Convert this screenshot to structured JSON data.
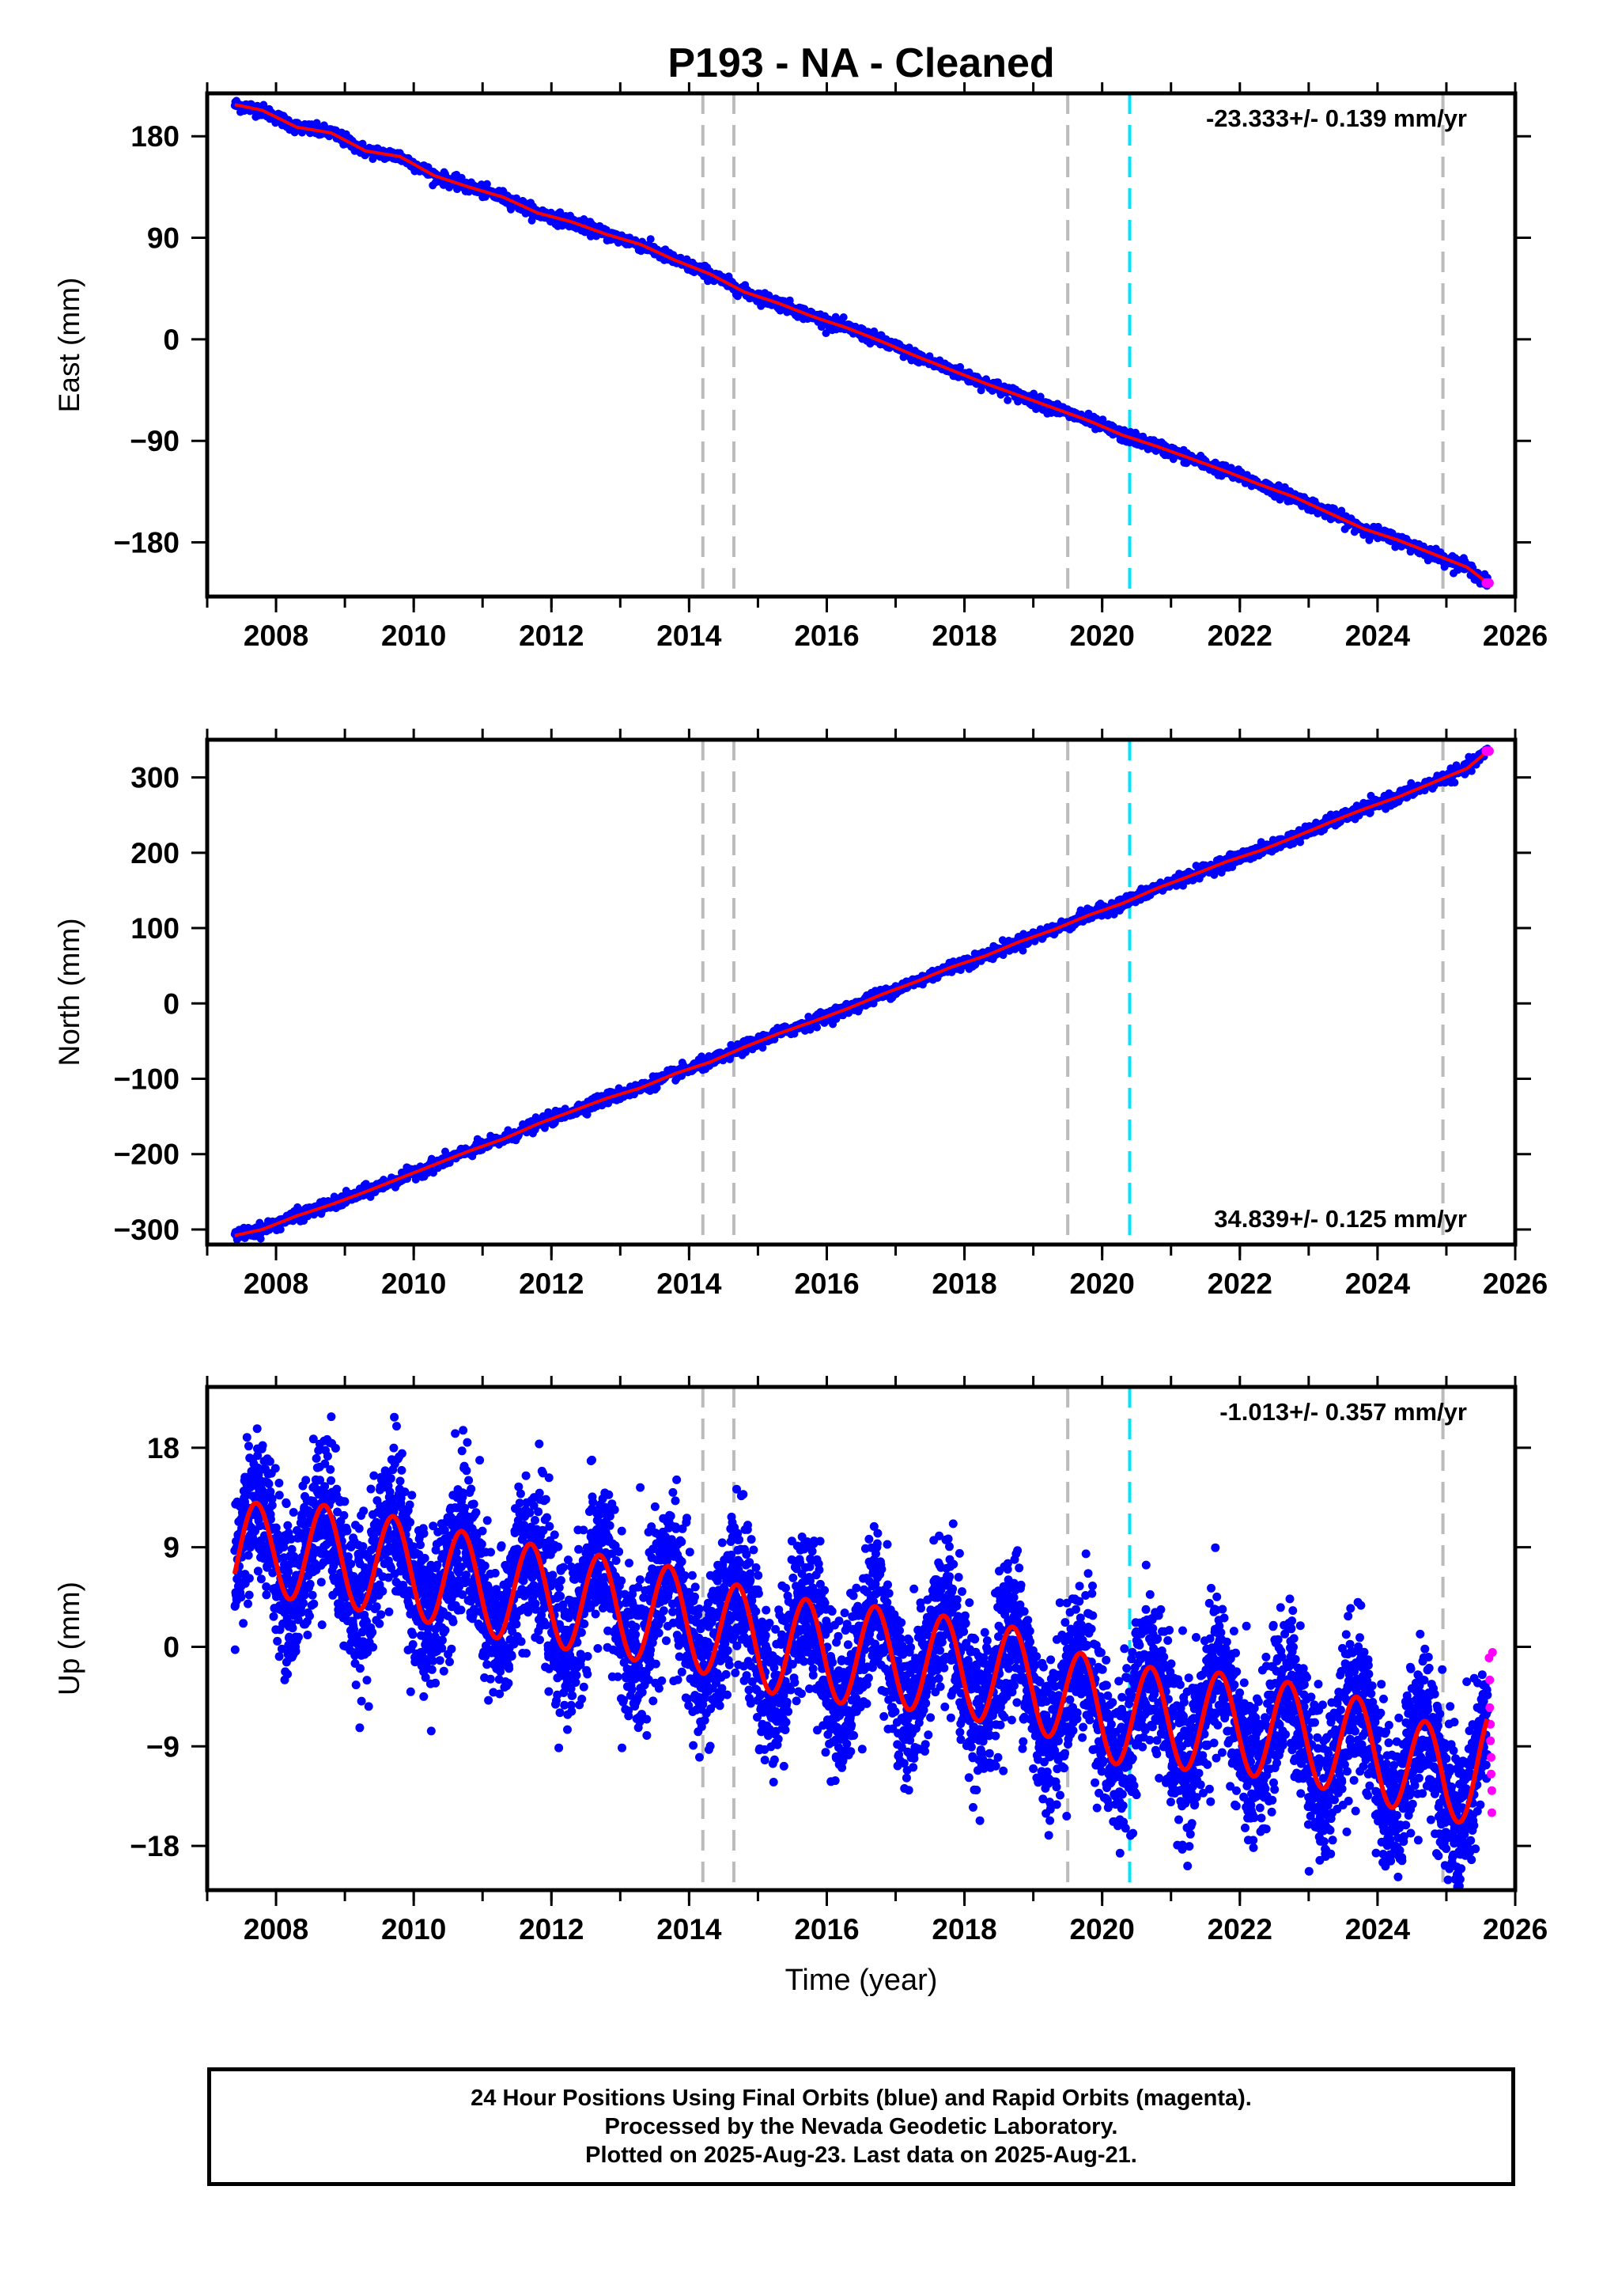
{
  "title": "P193  - NA - Cleaned",
  "colors": {
    "final_orbits": "#0000ff",
    "rapid_orbits": "#ff00ff",
    "model_fit": "#ff0000",
    "event_line": "#bbbbbb",
    "antenna_change_line": "#00e5ff"
  },
  "event_lines": [
    2014.2,
    2014.65,
    2019.5,
    2024.95
  ],
  "antenna_change_line": 2020.4,
  "xlim": [
    2007.0,
    2026.0
  ],
  "x_ticks": [
    2008,
    2010,
    2012,
    2014,
    2016,
    2018,
    2020,
    2022,
    2024,
    2026
  ],
  "x_label_bottom": "Time (year)",
  "chart_data": [
    {
      "type": "scatter",
      "component": "east",
      "ylabel": "East (mm)",
      "ylim": [
        -228,
        218
      ],
      "y_ticks": [
        180,
        90,
        0,
        -90,
        -180
      ],
      "y_tick_labels": [
        "180",
        "90",
        "0",
        "−90",
        "−180"
      ],
      "rate_label": "-23.333+/- 0.139 mm/yr",
      "rate_position": "top-right",
      "rate": -23.333,
      "series": [
        {
          "name": "",
          "x": [
            2007.4,
            2007.8,
            2008.3,
            2008.8,
            2009.3,
            2009.8,
            2010.3,
            2010.8,
            2011.3,
            2011.8,
            2012.3,
            2012.8,
            2013.3,
            2013.8,
            2014.3,
            2014.8,
            2015.3,
            2015.8,
            2016.3,
            2016.8,
            2017.3,
            2017.8,
            2018.3,
            2018.8,
            2019.3,
            2019.8,
            2020.3,
            2020.8,
            2021.3,
            2021.8,
            2022.3,
            2022.8,
            2023.3,
            2023.8,
            2024.3,
            2024.8,
            2025.3,
            2025.6
          ],
          "y": [
            208,
            203,
            188,
            183,
            167,
            162,
            145,
            135,
            126,
            112,
            104,
            93,
            84,
            70,
            58,
            42,
            32,
            20,
            10,
            -2,
            -15,
            -27,
            -39,
            -50,
            -61,
            -72,
            -85,
            -95,
            -106,
            -117,
            -129,
            -140,
            -154,
            -168,
            -178,
            -190,
            -202,
            -216
          ]
        }
      ]
    },
    {
      "type": "scatter",
      "component": "north",
      "ylabel": "North (mm)",
      "ylim": [
        -320,
        350
      ],
      "y_ticks": [
        300,
        200,
        100,
        0,
        -100,
        -200,
        -300
      ],
      "y_tick_labels": [
        "300",
        "200",
        "100",
        "0",
        "−100",
        "−200",
        "−300"
      ],
      "rate_label": "34.839+/- 0.125 mm/yr",
      "rate_position": "bottom-right",
      "rate": 34.839,
      "series": [
        {
          "name": "",
          "x": [
            2007.4,
            2007.8,
            2008.3,
            2008.8,
            2009.3,
            2009.8,
            2010.3,
            2010.8,
            2011.3,
            2011.8,
            2012.3,
            2012.8,
            2013.3,
            2013.8,
            2014.3,
            2014.8,
            2015.3,
            2015.8,
            2016.3,
            2016.8,
            2017.3,
            2017.8,
            2018.3,
            2018.8,
            2019.3,
            2019.8,
            2020.3,
            2020.8,
            2021.3,
            2021.8,
            2022.3,
            2022.8,
            2023.3,
            2023.8,
            2024.3,
            2024.8,
            2025.3,
            2025.6
          ],
          "y": [
            -308,
            -300,
            -282,
            -267,
            -250,
            -232,
            -214,
            -196,
            -180,
            -160,
            -143,
            -126,
            -112,
            -93,
            -78,
            -58,
            -40,
            -24,
            -7,
            12,
            29,
            48,
            63,
            82,
            98,
            117,
            133,
            153,
            170,
            188,
            203,
            221,
            240,
            258,
            274,
            293,
            312,
            335
          ]
        }
      ]
    },
    {
      "type": "scatter",
      "component": "up",
      "ylabel": "Up (mm)",
      "ylim": [
        -22,
        23.5
      ],
      "y_ticks": [
        18,
        9,
        0,
        -9,
        -18
      ],
      "y_tick_labels": [
        "18",
        "9",
        "0",
        "−9",
        "−18"
      ],
      "rate_label": "-1.013+/- 0.357 mm/yr",
      "rate_position": "top-right",
      "rate": -1.013,
      "seasonal_amplitude_mm": 4.5,
      "noise_sd_mm": 3.5,
      "series": [
        {
          "name": "",
          "x": [
            2007.4,
            2008.0,
            2009.0,
            2010.0,
            2011.0,
            2012.0,
            2013.0,
            2014.0,
            2015.0,
            2016.0,
            2017.0,
            2018.0,
            2019.0,
            2020.0,
            2021.0,
            2022.0,
            2023.0,
            2024.0,
            2025.0,
            2025.6
          ],
          "y": [
            8,
            9,
            8,
            7,
            5.5,
            4.5,
            3.5,
            2.5,
            0.5,
            -0.5,
            -1,
            -2,
            -3,
            -6,
            -6.5,
            -7,
            -8,
            -9.5,
            -12,
            -10
          ]
        }
      ],
      "rapid_points": {
        "x": [
          2025.62,
          2025.63,
          2025.63,
          2025.64,
          2025.64,
          2025.65,
          2025.65,
          2025.66,
          2025.66,
          2025.67
        ],
        "y": [
          -1,
          -3,
          -5.5,
          -7,
          -8.5,
          -10,
          -11.5,
          -13,
          -15,
          -0.5
        ]
      }
    }
  ],
  "footer": {
    "line1": "24 Hour Positions Using Final Orbits (blue) and Rapid Orbits (magenta).",
    "line2": "Processed by the Nevada Geodetic Laboratory.",
    "line3": "Plotted on 2025-Aug-23. Last data on 2025-Aug-21."
  }
}
